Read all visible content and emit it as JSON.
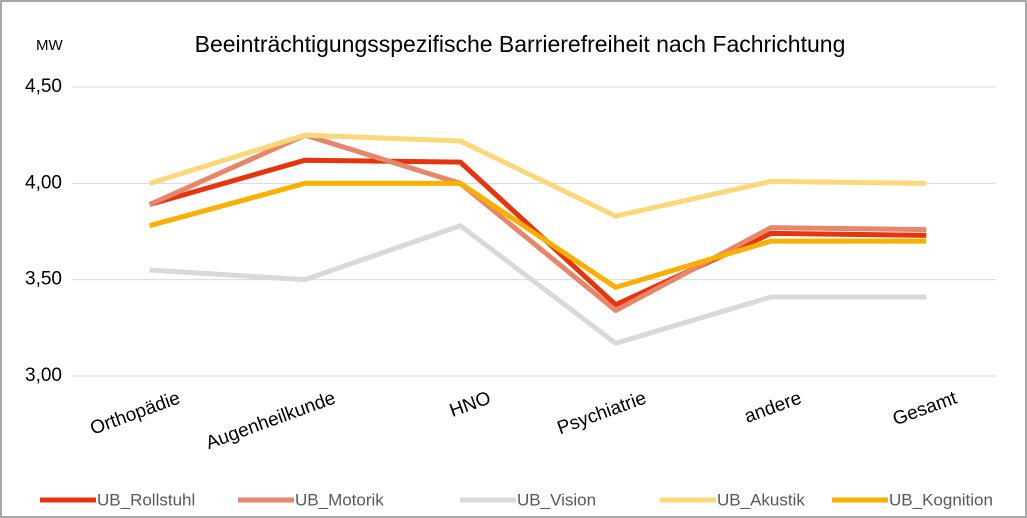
{
  "chart_data": {
    "type": "line",
    "title": "Beeinträchtigungsspezifische Barrierefreiheit nach Fachrichtung",
    "y_label": "MW",
    "categories": [
      "Orthopädie",
      "Augenheilkunde",
      "HNO",
      "Psychiatrie",
      "andere",
      "Gesamt"
    ],
    "series": [
      {
        "name": "UB_Rollstuhl",
        "color": "#e8340c",
        "values": [
          3.89,
          4.12,
          4.11,
          3.37,
          3.74,
          3.73
        ]
      },
      {
        "name": "UB_Motorik",
        "color": "#e8866a",
        "values": [
          3.89,
          4.25,
          4.0,
          3.34,
          3.77,
          3.76
        ]
      },
      {
        "name": "UB_Vision",
        "color": "#d9d9d9",
        "values": [
          3.55,
          3.5,
          3.78,
          3.17,
          3.41,
          3.41
        ]
      },
      {
        "name": "UB_Akustik",
        "color": "#fdd87a",
        "values": [
          4.0,
          4.25,
          4.22,
          3.83,
          4.01,
          4.0
        ]
      },
      {
        "name": "UB_Kognition",
        "color": "#fbb000",
        "values": [
          3.78,
          4.0,
          4.0,
          3.46,
          3.7,
          3.7
        ]
      }
    ],
    "ylim": [
      3.0,
      4.5
    ],
    "yticks": [
      {
        "value": 3.0,
        "label": "3,00"
      },
      {
        "value": 3.5,
        "label": "3,50"
      },
      {
        "value": 4.0,
        "label": "4,00"
      },
      {
        "value": 4.5,
        "label": "4,50"
      }
    ],
    "grid": true,
    "legend": "bottom"
  }
}
